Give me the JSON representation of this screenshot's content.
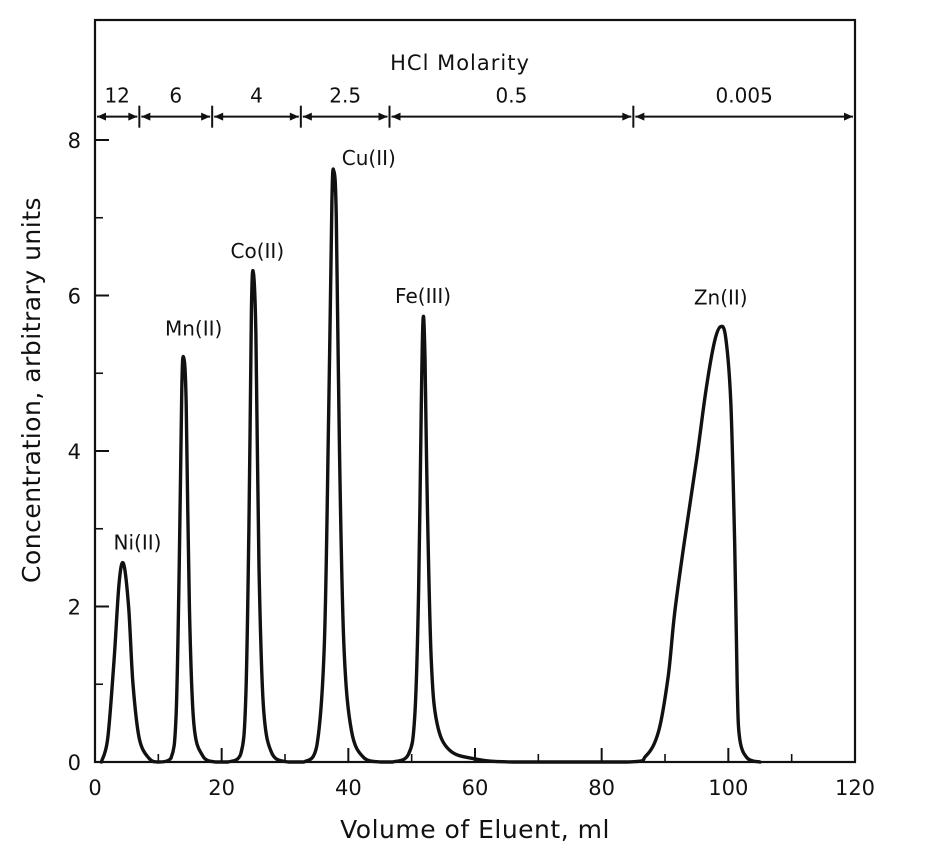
{
  "chart_data": {
    "type": "line",
    "title": "",
    "xlabel": "Volume of Eluent, ml",
    "ylabel": "Concentration, arbitrary units",
    "xlim": [
      0,
      120
    ],
    "ylim": [
      0,
      9.0
    ],
    "x_ticks": [
      0,
      20,
      40,
      60,
      80,
      100,
      120
    ],
    "x_tick_labels": [
      "0",
      "20",
      "40",
      "60",
      "80",
      "100",
      "120"
    ],
    "x_minor_ticks": [
      10,
      30,
      50,
      70,
      90,
      110
    ],
    "y_ticks": [
      0,
      2,
      4,
      6,
      8
    ],
    "y_tick_labels": [
      "0",
      "2",
      "4",
      "6",
      "8"
    ],
    "y_minor_ticks": [
      1,
      3,
      5,
      7
    ],
    "grid": false,
    "legend": "none",
    "series": [
      {
        "name": "",
        "points": [
          [
            1.0,
            0.0
          ],
          [
            2.0,
            0.3
          ],
          [
            3.0,
            1.3
          ],
          [
            3.8,
            2.3
          ],
          [
            4.5,
            2.55
          ],
          [
            5.3,
            2.0
          ],
          [
            6.0,
            1.0
          ],
          [
            7.0,
            0.3
          ],
          [
            8.5,
            0.05
          ],
          [
            10.0,
            0.0
          ],
          [
            12.0,
            0.05
          ],
          [
            12.8,
            0.6
          ],
          [
            13.3,
            2.5
          ],
          [
            13.7,
            4.8
          ],
          [
            14.0,
            5.2
          ],
          [
            14.4,
            4.6
          ],
          [
            14.9,
            2.0
          ],
          [
            15.6,
            0.5
          ],
          [
            17.0,
            0.08
          ],
          [
            19.0,
            0.0
          ],
          [
            21.0,
            0.0
          ],
          [
            23.0,
            0.1
          ],
          [
            23.8,
            0.8
          ],
          [
            24.3,
            3.0
          ],
          [
            24.7,
            5.8
          ],
          [
            25.0,
            6.3
          ],
          [
            25.4,
            5.5
          ],
          [
            25.9,
            2.5
          ],
          [
            26.6,
            0.7
          ],
          [
            28.0,
            0.1
          ],
          [
            30.5,
            0.0
          ],
          [
            33.0,
            0.0
          ],
          [
            35.0,
            0.2
          ],
          [
            36.2,
            1.5
          ],
          [
            36.9,
            4.5
          ],
          [
            37.4,
            7.2
          ],
          [
            37.7,
            7.6
          ],
          [
            38.1,
            7.0
          ],
          [
            38.6,
            4.0
          ],
          [
            39.3,
            1.5
          ],
          [
            40.5,
            0.4
          ],
          [
            42.5,
            0.05
          ],
          [
            45.0,
            0.0
          ],
          [
            47.0,
            0.0
          ],
          [
            49.5,
            0.1
          ],
          [
            50.5,
            0.6
          ],
          [
            51.1,
            2.2
          ],
          [
            51.5,
            4.5
          ],
          [
            51.8,
            5.7
          ],
          [
            52.1,
            5.2
          ],
          [
            52.5,
            3.2
          ],
          [
            53.1,
            1.3
          ],
          [
            54.0,
            0.5
          ],
          [
            56.0,
            0.15
          ],
          [
            60.0,
            0.04
          ],
          [
            66.0,
            0.0
          ],
          [
            84.0,
            0.0
          ],
          [
            87.0,
            0.08
          ],
          [
            89.0,
            0.4
          ],
          [
            90.5,
            1.1
          ],
          [
            91.5,
            1.9
          ],
          [
            93.0,
            2.8
          ],
          [
            95.0,
            3.9
          ],
          [
            96.5,
            4.8
          ],
          [
            97.8,
            5.4
          ],
          [
            98.8,
            5.6
          ],
          [
            99.6,
            5.45
          ],
          [
            100.4,
            4.6
          ],
          [
            101.0,
            2.8
          ],
          [
            101.4,
            1.0
          ],
          [
            101.8,
            0.3
          ],
          [
            103.0,
            0.05
          ],
          [
            105.0,
            0.0
          ]
        ]
      }
    ],
    "peak_labels": [
      {
        "text": "Ni(II)",
        "x": 4.5,
        "y": 2.55
      },
      {
        "text": "Mn(II)",
        "x": 14.0,
        "y": 5.2
      },
      {
        "text": "Co(II)",
        "x": 25.0,
        "y": 6.3
      },
      {
        "text": "Cu(II)",
        "x": 37.7,
        "y": 7.6
      },
      {
        "text": "Fe(III)",
        "x": 51.8,
        "y": 5.7
      },
      {
        "text": "Zn(II)",
        "x": 98.8,
        "y": 5.6
      }
    ],
    "top_bands": {
      "title": "HCl  Molarity",
      "y": 8.3,
      "segments": [
        {
          "label": "12",
          "start": 0,
          "end": 7
        },
        {
          "label": "6",
          "start": 7,
          "end": 18.5
        },
        {
          "label": "4",
          "start": 18.5,
          "end": 32.5
        },
        {
          "label": "2.5",
          "start": 32.5,
          "end": 46.5
        },
        {
          "label": "0.5",
          "start": 46.5,
          "end": 85
        },
        {
          "label": "0.005",
          "start": 85,
          "end": 120
        }
      ]
    }
  }
}
